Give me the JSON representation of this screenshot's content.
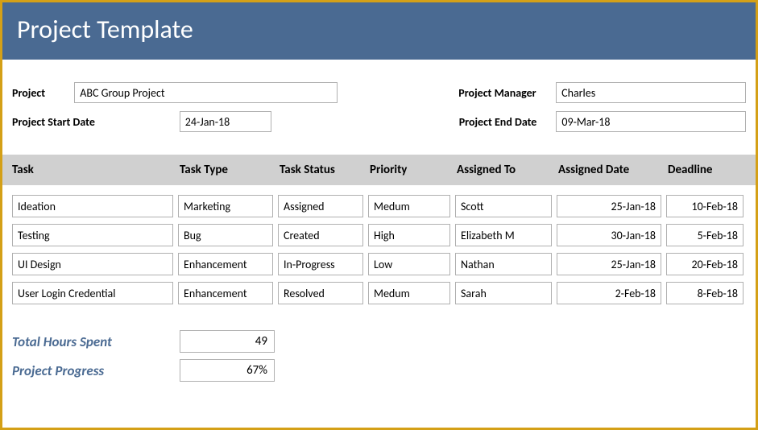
{
  "header": {
    "title": "Project Template"
  },
  "meta": {
    "project_label": "Project",
    "project_value": "ABC Group Project",
    "pm_label": "Project Manager",
    "pm_value": "Charles",
    "start_label": "Project Start Date",
    "start_value": "24-Jan-18",
    "end_label": "Project End Date",
    "end_value": "09-Mar-18"
  },
  "table": {
    "columns": {
      "task": "Task",
      "type": "Task Type",
      "status": "Task Status",
      "priority": "Priority",
      "assigned": "Assigned To",
      "adate": "Assigned Date",
      "deadline": "Deadline"
    },
    "rows": [
      {
        "task": "Ideation",
        "type": "Marketing",
        "status": "Assigned",
        "priority": "Medum",
        "assigned": "Scott",
        "adate": "25-Jan-18",
        "deadline": "10-Feb-18"
      },
      {
        "task": "Testing",
        "type": "Bug",
        "status": "Created",
        "priority": "High",
        "assigned": "Elizabeth M",
        "adate": "30-Jan-18",
        "deadline": "5-Feb-18"
      },
      {
        "task": "UI Design",
        "type": "Enhancement",
        "status": "In-Progress",
        "priority": "Low",
        "assigned": "Nathan",
        "adate": "25-Jan-18",
        "deadline": "20-Feb-18"
      },
      {
        "task": "User Login Credential",
        "type": "Enhancement",
        "status": "Resolved",
        "priority": "Medum",
        "assigned": "Sarah",
        "adate": "2-Feb-18",
        "deadline": "8-Feb-18"
      }
    ]
  },
  "summary": {
    "hours_label": "Total Hours Spent",
    "hours_value": "49",
    "progress_label": "Project Progress",
    "progress_value": "67%"
  },
  "style": {
    "header_bg": "#4a6a92",
    "header_color": "#ffffff",
    "border_frame": "#d4a017",
    "cell_border": "#b0b0b0",
    "th_bg": "#d0d0d0",
    "summary_label_color": "#4a6a92"
  }
}
